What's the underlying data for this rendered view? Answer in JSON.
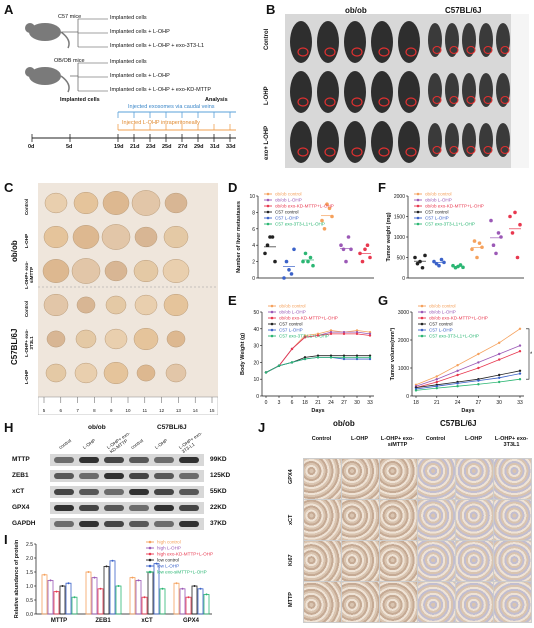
{
  "panels": {
    "A": {
      "letter": "A",
      "groups": [
        {
          "mouse": "C57 mice",
          "arms": [
            "Implanted cells",
            "Implanted cells + L-OHP",
            "Implanted cells + L-OHP + exo-3T3-L1"
          ]
        },
        {
          "mouse": "OB/OB mice",
          "arms": [
            "Implanted cells",
            "Implanted cells + L-OHP",
            "Implanted cells + L-OHP + exo-KD-MTTP"
          ]
        }
      ],
      "timeline": {
        "implanted": "Implanted cells",
        "analysis": "Analysis",
        "exosomes": "Injected exosomes via caudal veins",
        "lohp": "Injected L-OHP intraperitoneally",
        "days": [
          "0d",
          "5d",
          "19d",
          "21d",
          "23d",
          "25d",
          "27d",
          "29d",
          "31d",
          "33d"
        ]
      }
    },
    "B": {
      "letter": "B",
      "cols": [
        "ob/ob",
        "C57BL/6J"
      ],
      "rows": [
        "Control",
        "L-OHP",
        "exo+ L-OHP"
      ]
    },
    "C": {
      "letter": "C",
      "strains": [
        "ob/ob",
        "C57BL/6J"
      ],
      "rows": [
        "Control",
        "L-OHP",
        "L-OHP+ exo-siMTTP",
        "Control",
        "L-OHP+ exo-3T3L1",
        "L-OHP"
      ],
      "ruler": [
        "5",
        "6",
        "7",
        "8",
        "9",
        "10",
        "11",
        "12",
        "13",
        "14",
        "15"
      ]
    },
    "D": {
      "letter": "D"
    },
    "E": {
      "letter": "E"
    },
    "F": {
      "letter": "F"
    },
    "G": {
      "letter": "G",
      "sig": "**"
    },
    "H": {
      "letter": "H",
      "groups": [
        "ob/ob",
        "C57BL/6J"
      ],
      "lanes": [
        "control",
        "L-OHP",
        "L-OHP+ exo-KD-MTTP",
        "control",
        "L-OHP",
        "L-OHP+ exo-3T3-L1"
      ],
      "proteins": [
        {
          "name": "MTTP",
          "kd": "99KD"
        },
        {
          "name": "ZEB1",
          "kd": "125KD"
        },
        {
          "name": "xCT",
          "kd": "55KD"
        },
        {
          "name": "GPX4",
          "kd": "22KD"
        },
        {
          "name": "GAPDH",
          "kd": "37KD"
        }
      ]
    },
    "I": {
      "letter": "I"
    },
    "J": {
      "letter": "J",
      "groups": [
        "ob/ob",
        "C57BL/6J"
      ],
      "cols": [
        "Control",
        "L-OHP",
        "L-OHP+ exo-siMTTP",
        "Control",
        "L-OHP",
        "L-OHP+ exo-3T3L1"
      ],
      "rows": [
        "GPX4",
        "xCT",
        "Ki67",
        "MTTP"
      ]
    }
  },
  "legend_D": [
    "ob/ob control",
    "ob/ob L-OHP",
    "ob/ob exo-KD-MTTP+L-OHP",
    "C57 control",
    "C57 L-OHP",
    "C57 exo-3T3-L1+L-OHP"
  ],
  "legend_E": [
    "ob/ob control",
    "ob/ob L-OHP",
    "ob/ob exo-KD-MTTP+L-OHP",
    "C57 control",
    "C57 L-OHP",
    "C57 exo-3T3-L1+L-OHP"
  ],
  "legend_F": [
    "ob/ob control",
    "ob/ob L-OHP",
    "ob/ob exo-KD-MTTP+L-OHP",
    "C57 control",
    "C57 L-OHP",
    "C57 exo-3T3-L1+L-OHP"
  ],
  "legend_G": [
    "ob/ob control",
    "ob/ob L-OHP",
    "ob/ob exo-KD-MTTP+L-OHP",
    "C57 control",
    "C57 L-OHP",
    "C57 exo-3T3-L1+L-OHP"
  ],
  "legend_I": [
    "high control",
    "high L-OHP",
    "high exo-KD-MTTP+L-OHP",
    "low control",
    "low L-OHP",
    "low exo-siMTTP+L-OHP"
  ],
  "colors": {
    "s1": "#f5a15c",
    "s2": "#9b59b6",
    "s3": "#e8384f",
    "s4": "#222222",
    "s5": "#3b62c9",
    "s6": "#2bb673"
  },
  "chart_data": [
    {
      "type": "scatter",
      "ylabel": "Number of liver metastases",
      "ylim": [
        0,
        10
      ],
      "yticks": [
        "0",
        "2",
        "4",
        "6",
        "8",
        "10"
      ],
      "series": [
        {
          "values": [
            3,
            4,
            5,
            5,
            2
          ]
        },
        {
          "values": [
            0,
            2,
            1,
            0.5,
            3.5
          ]
        },
        {
          "values": [
            2,
            3,
            2,
            2.5,
            1.5
          ]
        },
        {
          "values": [
            7,
            6,
            9,
            8.5,
            7.5
          ]
        },
        {
          "values": [
            4,
            3.5,
            2,
            5,
            3.5
          ]
        },
        {
          "values": [
            3,
            2,
            3.5,
            4,
            2.5
          ]
        }
      ]
    },
    {
      "type": "line",
      "xlabel": "Days",
      "ylabel": "Body Weight (g)",
      "x": [
        0,
        3,
        6,
        18,
        21,
        24,
        27,
        30,
        33
      ],
      "xticks": [
        "0",
        "3",
        "6",
        "18",
        "21",
        "24",
        "27",
        "30",
        "33"
      ],
      "ylim": [
        0,
        50
      ],
      "yticks": [
        "0",
        "10",
        "20",
        "30",
        "40",
        "50"
      ],
      "series": [
        {
          "values": [
            14,
            18,
            28,
            36,
            37,
            39,
            38,
            39,
            38
          ]
        },
        {
          "values": [
            14,
            18,
            28,
            35,
            36,
            38,
            38,
            38,
            37
          ]
        },
        {
          "values": [
            14,
            18,
            28,
            35,
            36,
            37,
            37,
            37,
            36
          ]
        },
        {
          "values": [
            14,
            18,
            20,
            23,
            24,
            24,
            24,
            24,
            24
          ]
        },
        {
          "values": [
            14,
            18,
            20,
            22,
            23,
            23,
            22,
            22,
            22
          ]
        },
        {
          "values": [
            14,
            18,
            20,
            22,
            23,
            23,
            23,
            23,
            23
          ]
        }
      ]
    },
    {
      "type": "scatter",
      "ylabel": "Tumor weight (mg)",
      "ylim": [
        0,
        2000
      ],
      "yticks": [
        "0",
        "500",
        "1000",
        "1500",
        "2000"
      ],
      "series": [
        {
          "values": [
            500,
            350,
            400,
            250,
            550
          ]
        },
        {
          "values": [
            400,
            350,
            300,
            450,
            380
          ]
        },
        {
          "values": [
            300,
            250,
            280,
            320,
            260
          ]
        },
        {
          "values": [
            700,
            900,
            500,
            850,
            750
          ]
        },
        {
          "values": [
            1400,
            800,
            600,
            1100,
            1000
          ]
        },
        {
          "values": [
            1500,
            1100,
            1600,
            500,
            1300
          ]
        }
      ]
    },
    {
      "type": "line",
      "xlabel": "Days",
      "ylabel": "Tumor volume(mm³)",
      "x": [
        18,
        21,
        24,
        27,
        30,
        33
      ],
      "xticks": [
        "18",
        "21",
        "24",
        "27",
        "30",
        "33"
      ],
      "ylim": [
        0,
        3000
      ],
      "yticks": [
        "0",
        "1000",
        "2000",
        "3000"
      ],
      "series": [
        {
          "values": [
            400,
            700,
            1100,
            1500,
            1900,
            2400
          ]
        },
        {
          "values": [
            350,
            600,
            900,
            1200,
            1500,
            1800
          ]
        },
        {
          "values": [
            300,
            500,
            750,
            1000,
            1300,
            1600
          ]
        },
        {
          "values": [
            300,
            400,
            500,
            600,
            750,
            900
          ]
        },
        {
          "values": [
            250,
            350,
            450,
            550,
            650,
            800
          ]
        },
        {
          "values": [
            200,
            280,
            350,
            420,
            500,
            600
          ]
        }
      ]
    },
    {
      "type": "bar",
      "ylabel": "Relative abundance of protein",
      "categories": [
        "MTTP",
        "ZEB1",
        "xCT",
        "GPX4"
      ],
      "ylim": [
        0,
        2.5
      ],
      "yticks": [
        "0.0",
        "0.5",
        "1.0",
        "1.5",
        "2.0",
        "2.5"
      ],
      "series": [
        {
          "values": [
            1.4,
            1.5,
            1.3,
            1.1
          ]
        },
        {
          "values": [
            1.2,
            1.3,
            1.2,
            0.9
          ]
        },
        {
          "values": [
            0.8,
            0.9,
            0.6,
            0.6
          ]
        },
        {
          "values": [
            1.0,
            1.7,
            1.5,
            1.0
          ]
        },
        {
          "values": [
            1.1,
            1.9,
            1.8,
            0.9
          ]
        },
        {
          "values": [
            0.6,
            1.0,
            0.9,
            0.7
          ]
        }
      ]
    }
  ]
}
